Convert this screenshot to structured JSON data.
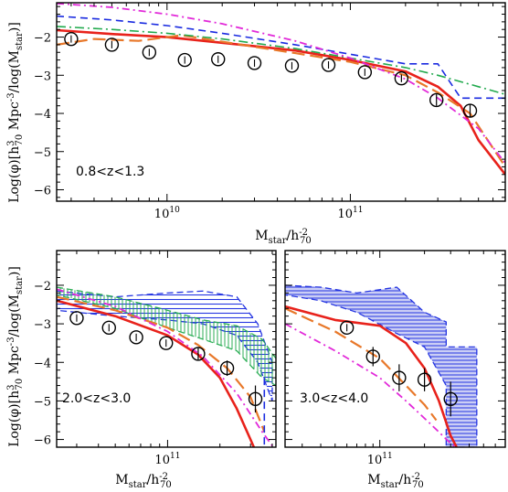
{
  "figure": {
    "ylabel_main": "Log(φ)[h",
    "ylabel_sup": "3",
    "ylabel_sub": "70",
    "ylabel_rest": " Mpc",
    "ylabel_exp": "-3",
    "ylabel_tail": "/log(M",
    "ylabel_tail_sub": "star",
    "ylabel_end": ")]",
    "xlabel_main": "M",
    "xlabel_sub": "star",
    "xlabel_mid": "/h",
    "xlabel_sup": "-2",
    "xlabel_sub2": "70"
  },
  "colors": {
    "red": "#e8221b",
    "orange": "#e8782a",
    "blue": "#1a2be0",
    "green": "#22aa4e",
    "magenta": "#e22ad9",
    "blue_fill": "#b8bcf2"
  },
  "chart_data": [
    {
      "type": "line",
      "panel": "top",
      "annotation": "0.8<z<1.3",
      "x_scale": "log",
      "xlim": [
        2500000000.0,
        700000000000.0
      ],
      "ylim": [
        -6.3,
        -1.1
      ],
      "x_ticks": [
        {
          "v": 10000000000.0,
          "m": "10",
          "e": "10"
        },
        {
          "v": 100000000000.0,
          "m": "10",
          "e": "11"
        }
      ],
      "y_ticks": [
        -2,
        -3,
        -4,
        -5,
        -6
      ],
      "points": {
        "x": [
          3000000000.0,
          5000000000.0,
          8000000000.0,
          12500000000.0,
          19000000000.0,
          30000000000.0,
          48000000000.0,
          76000000000.0,
          120000000000.0,
          190000000000.0,
          295000000000.0,
          450000000000.0
        ],
        "y": [
          -2.05,
          -2.2,
          -2.4,
          -2.6,
          -2.58,
          -2.68,
          -2.75,
          -2.73,
          -2.92,
          -3.08,
          -3.65,
          -3.93
        ],
        "yerr": [
          0.0,
          0.0,
          0.0,
          0.0,
          0.0,
          0.0,
          0.0,
          0.0,
          0.0,
          0.1,
          0.15,
          0.18
        ]
      },
      "series": [
        {
          "style": "red-solid",
          "x": [
            2500000000.0,
            5000000000.0,
            10000000000.0,
            20000000000.0,
            50000000000.0,
            100000000000.0,
            200000000000.0,
            300000000000.0,
            400000000000.0,
            500000000000.0,
            700000000000.0
          ],
          "y": [
            -1.82,
            -1.92,
            -2.0,
            -2.15,
            -2.35,
            -2.6,
            -2.9,
            -3.3,
            -3.8,
            -4.7,
            -5.6
          ]
        },
        {
          "style": "orange-longdash",
          "x": [
            2500000000.0,
            4000000000.0,
            7000000000.0,
            12000000000.0,
            20000000000.0,
            50000000000.0,
            100000000000.0,
            200000000000.0,
            300000000000.0,
            450000000000.0,
            700000000000.0
          ],
          "y": [
            -2.2,
            -2.05,
            -2.1,
            -1.95,
            -2.12,
            -2.42,
            -2.65,
            -3.0,
            -3.45,
            -4.0,
            -5.4
          ]
        },
        {
          "style": "blue-dash",
          "x": [
            2500000000.0,
            5000000000.0,
            10000000000.0,
            20000000000.0,
            50000000000.0,
            100000000000.0,
            200000000000.0,
            300000000000.0,
            400000000000.0,
            700000000000.0
          ],
          "y": [
            -1.45,
            -1.55,
            -1.7,
            -1.9,
            -2.2,
            -2.45,
            -2.7,
            -2.7,
            -3.6,
            -3.6
          ]
        },
        {
          "style": "green-dashdot",
          "x": [
            2500000000.0,
            5000000000.0,
            10000000000.0,
            20000000000.0,
            50000000000.0,
            100000000000.0,
            200000000000.0,
            300000000000.0,
            500000000000.0,
            700000000000.0
          ],
          "y": [
            -1.72,
            -1.8,
            -1.9,
            -2.05,
            -2.3,
            -2.55,
            -2.8,
            -3.0,
            -3.3,
            -3.5
          ]
        },
        {
          "style": "magenta-dashdot",
          "x": [
            2500000000.0,
            5000000000.0,
            10000000000.0,
            20000000000.0,
            50000000000.0,
            100000000000.0,
            200000000000.0,
            300000000000.0,
            500000000000.0,
            700000000000.0
          ],
          "y": [
            -1.12,
            -1.22,
            -1.4,
            -1.65,
            -2.1,
            -2.55,
            -3.1,
            -3.6,
            -4.4,
            -5.3
          ]
        }
      ]
    },
    {
      "type": "line",
      "panel": "bottom-left",
      "annotation": "2.0<z<3.0",
      "x_scale": "log",
      "xlim": [
        23000000000.0,
        420000000000.0
      ],
      "ylim": [
        -6.2,
        -1.1
      ],
      "x_ticks": [
        {
          "v": 100000000000.0,
          "m": "10",
          "e": "11"
        }
      ],
      "y_ticks": [
        -2,
        -3,
        -4,
        -5,
        -6
      ],
      "points": {
        "x": [
          30000000000.0,
          46000000000.0,
          66000000000.0,
          98000000000.0,
          150000000000.0,
          220000000000.0,
          320000000000.0
        ],
        "y": [
          -2.85,
          -3.1,
          -3.35,
          -3.5,
          -3.78,
          -4.15,
          -4.95
        ],
        "yerr": [
          0.0,
          0.0,
          0.0,
          0.0,
          0.15,
          0.2,
          0.35
        ]
      },
      "bands": [
        {
          "style": "blue-hatch",
          "x": [
            23000000000.0,
            50000000000.0,
            100000000000.0,
            160000000000.0,
            250000000000.0,
            330000000000.0,
            400000000000.0
          ],
          "lo": [
            -2.65,
            -2.8,
            -2.9,
            -3.0,
            -3.3,
            -4.0,
            -5.0
          ],
          "hi": [
            -2.15,
            -2.3,
            -2.2,
            -2.15,
            -2.3,
            -3.0,
            -4.0
          ]
        },
        {
          "style": "green-hatch",
          "x": [
            23000000000.0,
            50000000000.0,
            100000000000.0,
            160000000000.0,
            250000000000.0,
            350000000000.0,
            420000000000.0
          ],
          "lo": [
            -2.25,
            -2.6,
            -3.1,
            -3.4,
            -3.7,
            -4.4,
            -4.6
          ],
          "hi": [
            -2.05,
            -2.3,
            -2.65,
            -2.9,
            -3.05,
            -3.4,
            -3.9
          ]
        }
      ],
      "series": [
        {
          "style": "red-solid",
          "x": [
            23000000000.0,
            50000000000.0,
            100000000000.0,
            150000000000.0,
            200000000000.0,
            250000000000.0,
            300000000000.0,
            350000000000.0
          ],
          "y": [
            -2.4,
            -2.8,
            -3.3,
            -3.8,
            -4.4,
            -5.2,
            -6.0,
            -6.7
          ]
        },
        {
          "style": "orange-longdash",
          "x": [
            23000000000.0,
            50000000000.0,
            100000000000.0,
            150000000000.0,
            220000000000.0,
            300000000000.0,
            360000000000.0
          ],
          "y": [
            -2.3,
            -2.65,
            -3.1,
            -3.55,
            -4.15,
            -4.9,
            -5.8
          ]
        },
        {
          "style": "blue-dash",
          "x": [
            360000000000.0,
            360000000000.0
          ],
          "y": [
            -4.4,
            -6.2
          ]
        },
        {
          "style": "magenta-dashdot",
          "x": [
            23000000000.0,
            50000000000.0,
            100000000000.0,
            160000000000.0,
            250000000000.0,
            350000000000.0,
            420000000000.0
          ],
          "y": [
            -2.1,
            -2.55,
            -3.2,
            -3.85,
            -4.8,
            -5.8,
            -6.3
          ]
        }
      ]
    },
    {
      "type": "line",
      "panel": "bottom-right",
      "annotation": "3.0<z<4.0",
      "x_scale": "log",
      "xlim": [
        23000000000.0,
        700000000000.0
      ],
      "ylim": [
        -6.2,
        -1.1
      ],
      "x_ticks": [
        {
          "v": 100000000000.0,
          "m": "10",
          "e": "11"
        }
      ],
      "y_ticks": [],
      "points": {
        "x": [
          60000000000.0,
          90000000000.0,
          135000000000.0,
          200000000000.0,
          300000000000.0
        ],
        "y": [
          -3.1,
          -3.85,
          -4.4,
          -4.45,
          -4.95
        ],
        "yerr": [
          0.0,
          0.25,
          0.35,
          0.3,
          0.45
        ]
      },
      "bands": [
        {
          "style": "blue-fill",
          "x": [
            23000000000.0,
            40000000000.0,
            70000000000.0,
            130000000000.0,
            200000000000.0,
            280000000000.0,
            280000000000.0,
            450000000000.0,
            450000000000.0,
            280000000000.0,
            280000000000.0,
            200000000000.0,
            130000000000.0,
            70000000000.0,
            40000000000.0,
            23000000000.0
          ],
          "poly_y": [
            -2.0,
            -2.05,
            -2.2,
            -2.05,
            -2.7,
            -2.95,
            -3.6,
            -3.6,
            -6.2,
            -6.2,
            -4.6,
            -3.6,
            -3.25,
            -2.7,
            -2.4,
            -2.25
          ]
        }
      ],
      "series": [
        {
          "style": "red-solid",
          "x": [
            23000000000.0,
            50000000000.0,
            100000000000.0,
            150000000000.0,
            200000000000.0,
            250000000000.0,
            300000000000.0,
            350000000000.0
          ],
          "y": [
            -2.55,
            -2.9,
            -3.05,
            -3.5,
            -4.15,
            -5.0,
            -5.9,
            -6.4
          ]
        },
        {
          "style": "orange-longdash",
          "x": [
            23000000000.0,
            50000000000.0,
            100000000000.0,
            150000000000.0,
            200000000000.0,
            240000000000.0
          ],
          "y": [
            -2.6,
            -3.2,
            -3.9,
            -4.6,
            -5.1,
            -5.5
          ]
        },
        {
          "style": "magenta-dashdot",
          "x": [
            23000000000.0,
            50000000000.0,
            100000000000.0,
            150000000000.0,
            220000000000.0,
            300000000000.0,
            350000000000.0
          ],
          "y": [
            -3.0,
            -3.7,
            -4.4,
            -5.0,
            -5.6,
            -6.1,
            -6.3
          ]
        }
      ]
    }
  ]
}
